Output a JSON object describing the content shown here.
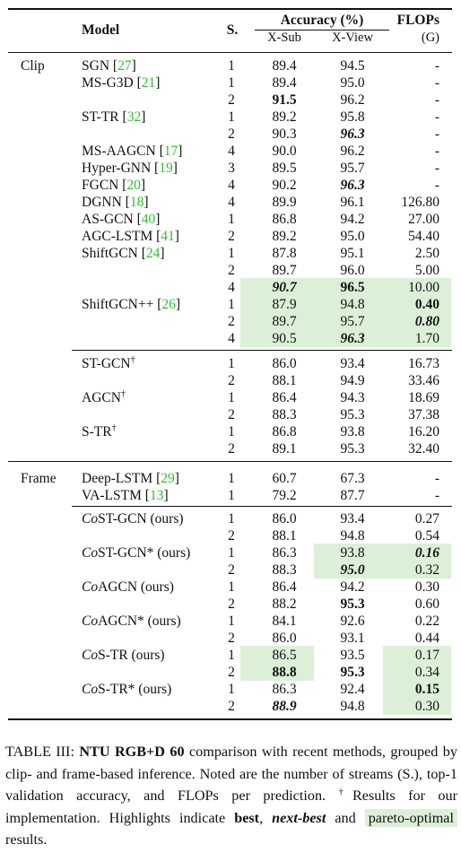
{
  "header": {
    "model": "Model",
    "streams": "S.",
    "accuracy": "Accuracy (%)",
    "xsub": "X-Sub",
    "xview": "X-View",
    "flops": "FLOPs",
    "flops_unit": "(G)"
  },
  "groups": {
    "clip": "Clip",
    "frame": "Frame"
  },
  "rows": [
    {
      "id": "sgn",
      "name": "SGN",
      "ref": "27",
      "s": "1",
      "xsub": "89.4",
      "xview": "94.5",
      "flops": "-"
    },
    {
      "id": "msg3d-1",
      "name": "MS-G3D",
      "ref": "21",
      "s": "1",
      "xsub": "89.4",
      "xview": "95.0",
      "flops": "-"
    },
    {
      "id": "msg3d-2",
      "name": "",
      "ref": "",
      "s": "2",
      "xsub": "91.5",
      "xview": "96.2",
      "flops": "-"
    },
    {
      "id": "sttr-1",
      "name": "ST-TR",
      "ref": "32",
      "s": "1",
      "xsub": "89.2",
      "xview": "95.8",
      "flops": "-"
    },
    {
      "id": "sttr-2",
      "name": "",
      "ref": "",
      "s": "2",
      "xsub": "90.3",
      "xview": "96.3",
      "flops": "-"
    },
    {
      "id": "msaagcn",
      "name": "MS-AAGCN",
      "ref": "17",
      "s": "4",
      "xsub": "90.0",
      "xview": "96.2",
      "flops": "-"
    },
    {
      "id": "hypergnn",
      "name": "Hyper-GNN",
      "ref": "19",
      "s": "3",
      "xsub": "89.5",
      "xview": "95.7",
      "flops": "-"
    },
    {
      "id": "fgcn",
      "name": "FGCN",
      "ref": "20",
      "s": "4",
      "xsub": "90.2",
      "xview": "96.3",
      "flops": "-"
    },
    {
      "id": "dgnn",
      "name": "DGNN",
      "ref": "18",
      "s": "4",
      "xsub": "89.9",
      "xview": "96.1",
      "flops": "126.80"
    },
    {
      "id": "asgcn",
      "name": "AS-GCN",
      "ref": "40",
      "s": "1",
      "xsub": "86.8",
      "xview": "94.2",
      "flops": "27.00"
    },
    {
      "id": "agclstm",
      "name": "AGC-LSTM",
      "ref": "41",
      "s": "2",
      "xsub": "89.2",
      "xview": "95.0",
      "flops": "54.40"
    },
    {
      "id": "shift-1",
      "name": "ShiftGCN",
      "ref": "24",
      "s": "1",
      "xsub": "87.8",
      "xview": "95.1",
      "flops": "2.50"
    },
    {
      "id": "shift-2",
      "name": "",
      "ref": "",
      "s": "2",
      "xsub": "89.7",
      "xview": "96.0",
      "flops": "5.00"
    },
    {
      "id": "shift-4",
      "name": "",
      "ref": "",
      "s": "4",
      "xsub": "90.7",
      "xview": "96.5",
      "flops": "10.00"
    },
    {
      "id": "shiftpp-1",
      "name": "ShiftGCN++",
      "ref": "26",
      "s": "1",
      "xsub": "87.9",
      "xview": "94.8",
      "flops": "0.40"
    },
    {
      "id": "shiftpp-2",
      "name": "",
      "ref": "",
      "s": "2",
      "xsub": "89.7",
      "xview": "95.7",
      "flops": "0.80"
    },
    {
      "id": "shiftpp-4",
      "name": "",
      "ref": "",
      "s": "4",
      "xsub": "90.5",
      "xview": "96.3",
      "flops": "1.70"
    },
    {
      "id": "stgcn-1",
      "name": "ST-GCN",
      "dagger": "†",
      "s": "1",
      "xsub": "86.0",
      "xview": "93.4",
      "flops": "16.73"
    },
    {
      "id": "stgcn-2",
      "name": "",
      "s": "2",
      "xsub": "88.1",
      "xview": "94.9",
      "flops": "33.46"
    },
    {
      "id": "agcn-1",
      "name": "AGCN",
      "dagger": "†",
      "s": "1",
      "xsub": "86.4",
      "xview": "94.3",
      "flops": "18.69"
    },
    {
      "id": "agcn-2",
      "name": "",
      "s": "2",
      "xsub": "88.3",
      "xview": "95.3",
      "flops": "37.38"
    },
    {
      "id": "str-1",
      "name": "S-TR",
      "dagger": "†",
      "s": "1",
      "xsub": "86.8",
      "xview": "93.8",
      "flops": "16.20"
    },
    {
      "id": "str-2",
      "name": "",
      "s": "2",
      "xsub": "89.1",
      "xview": "95.3",
      "flops": "32.40"
    },
    {
      "id": "deeplstm",
      "name": "Deep-LSTM",
      "ref": "29",
      "s": "1",
      "xsub": "60.7",
      "xview": "67.3",
      "flops": "-"
    },
    {
      "id": "valstm",
      "name": "VA-LSTM",
      "ref": "13",
      "s": "1",
      "xsub": "79.2",
      "xview": "87.7",
      "flops": "-"
    },
    {
      "id": "costgcn-1",
      "co": "Co",
      "name": "ST-GCN (ours)",
      "s": "1",
      "xsub": "86.0",
      "xview": "93.4",
      "flops": "0.27"
    },
    {
      "id": "costgcn-2",
      "name": "",
      "s": "2",
      "xsub": "88.1",
      "xview": "94.8",
      "flops": "0.54"
    },
    {
      "id": "costgcns-1",
      "co": "Co",
      "name": "ST-GCN* (ours)",
      "s": "1",
      "xsub": "86.3",
      "xview": "93.8",
      "flops": "0.16"
    },
    {
      "id": "costgcns-2",
      "name": "",
      "s": "2",
      "xsub": "88.3",
      "xview": "95.0",
      "flops": "0.32"
    },
    {
      "id": "coagcn-1",
      "co": "Co",
      "name": "AGCN (ours)",
      "s": "1",
      "xsub": "86.4",
      "xview": "94.2",
      "flops": "0.30"
    },
    {
      "id": "coagcn-2",
      "name": "",
      "s": "2",
      "xsub": "88.2",
      "xview": "95.3",
      "flops": "0.60"
    },
    {
      "id": "coagcns-1",
      "co": "Co",
      "name": "AGCN* (ours)",
      "s": "1",
      "xsub": "84.1",
      "xview": "92.6",
      "flops": "0.22"
    },
    {
      "id": "coagcns-2",
      "name": "",
      "s": "2",
      "xsub": "86.0",
      "xview": "93.1",
      "flops": "0.44"
    },
    {
      "id": "costr-1",
      "co": "Co",
      "name": "S-TR (ours)",
      "s": "1",
      "xsub": "86.5",
      "xview": "93.5",
      "flops": "0.17"
    },
    {
      "id": "costr-2",
      "name": "",
      "s": "2",
      "xsub": "88.8",
      "xview": "95.3",
      "flops": "0.34"
    },
    {
      "id": "costrs-1",
      "co": "Co",
      "name": "S-TR* (ours)",
      "s": "1",
      "xsub": "86.3",
      "xview": "92.4",
      "flops": "0.15"
    },
    {
      "id": "costrs-2",
      "name": "",
      "s": "2",
      "xsub": "88.9",
      "xview": "94.8",
      "flops": "0.30"
    }
  ],
  "caption": {
    "label": "TABLE III:",
    "dataset": "NTU RGB+D 60",
    "text1": " comparison with recent methods, grouped by clip- and frame-based inference. Noted are the number of streams (S.), top-1 validation accuracy, and FLOPs per prediction. ",
    "dagger": "†",
    "text2": "Results for our implementation. Highlights indicate ",
    "best": "best",
    "sep1": ", ",
    "nextbest": "next-best",
    "sep2": " and ",
    "pareto": "pareto-optimal",
    "text3": " results."
  },
  "colors": {
    "highlight": "#dcf0d8",
    "reference": "#2fbf2f",
    "text": "#111111"
  }
}
